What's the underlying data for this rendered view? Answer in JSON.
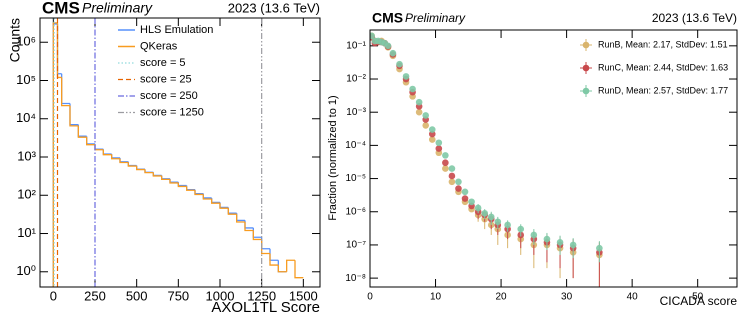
{
  "chart_data": [
    {
      "type": "histogram",
      "experiment": "CMS",
      "status": "Preliminary",
      "energy": "2023 (13.6 TeV)",
      "x_label": "AXOL1TL Score",
      "y_label": "Counts",
      "log_y": true,
      "legend": "upper right",
      "bins": [
        0,
        25,
        50,
        100,
        150,
        200,
        250,
        300,
        350,
        400,
        450,
        500,
        550,
        600,
        650,
        700,
        750,
        800,
        850,
        900,
        950,
        1000,
        1050,
        1100,
        1150,
        1200,
        1250,
        1300,
        1350,
        1400,
        1450,
        1500
      ],
      "series": [
        {
          "name": "HLS Emulation",
          "color": "#5790fc",
          "values": [
            3000000,
            150000,
            25000,
            7000,
            3500,
            2200,
            1600,
            1200,
            950,
            750,
            600,
            480,
            400,
            330,
            270,
            220,
            180,
            140,
            110,
            85,
            65,
            48,
            34,
            22,
            14,
            8,
            4,
            2,
            1,
            null,
            null
          ]
        },
        {
          "name": "QKeras",
          "color": "#f89c20",
          "values": [
            3200000,
            120000,
            22000,
            6500,
            3300,
            2100,
            1550,
            1150,
            900,
            720,
            580,
            470,
            390,
            320,
            260,
            210,
            170,
            135,
            105,
            80,
            62,
            46,
            32,
            20,
            12,
            7,
            3,
            1.5,
            1,
            2,
            0.7
          ]
        }
      ],
      "vlines": [
        {
          "name": "score = 5",
          "value": 5,
          "color": "#92dadd",
          "style": "dotted"
        },
        {
          "name": "score = 25",
          "value": 25,
          "color": "#e76300",
          "style": "dashed"
        },
        {
          "name": "score = 250",
          "value": 250,
          "color": "#6a6adf",
          "style": "dashdot"
        },
        {
          "name": "score = 1250",
          "value": 1250,
          "color": "#9c9ca1",
          "style": "dashdotdot"
        }
      ],
      "xlim": [
        -80,
        1600
      ],
      "xticks": [
        0,
        250,
        500,
        750,
        1000,
        1250,
        1500
      ],
      "ylim": [
        0.4,
        4300000
      ],
      "yticks": [
        {
          "value": 1,
          "label": "10⁰"
        },
        {
          "value": 10,
          "label": "10¹"
        },
        {
          "value": 100,
          "label": "10²"
        },
        {
          "value": 1000,
          "label": "10³"
        },
        {
          "value": 10000,
          "label": "10⁴"
        },
        {
          "value": 100000,
          "label": "10⁵"
        },
        {
          "value": 1000000,
          "label": "10⁶"
        }
      ]
    },
    {
      "type": "scatter",
      "experiment": "CMS",
      "status": "Preliminary",
      "energy": "2023 (13.6 TeV)",
      "x_label": "CICADA score",
      "y_label": "Fraction (normalized to 1)",
      "log_y": true,
      "legend": "upper right",
      "x": [
        0.25,
        0.75,
        1.25,
        1.75,
        2.25,
        2.75,
        3.5,
        4.5,
        5.5,
        6.5,
        7.5,
        8.5,
        9.5,
        10.5,
        11.5,
        12.5,
        13.5,
        14.5,
        15.5,
        16.5,
        17.5,
        18.5,
        19.5,
        21,
        23,
        25,
        27,
        29,
        31,
        35
      ],
      "series": [
        {
          "name": "RunB, Mean: 2.17, StdDev: 1.51",
          "color": "#d9b46c",
          "values": [
            0.2,
            0.14,
            0.13,
            0.14,
            0.12,
            0.09,
            0.05,
            0.02,
            0.008,
            0.003,
            0.001,
            0.0004,
            0.00015,
            6e-05,
            2e-05,
            8e-06,
            4e-06,
            2e-06,
            1.2e-06,
            8e-07,
            6e-07,
            4e-07,
            3e-07,
            2e-07,
            1.5e-07,
            1e-07,
            1e-07,
            8e-08,
            6e-08,
            5e-08
          ],
          "errors": [
            null,
            null,
            null,
            null,
            null,
            null,
            null,
            null,
            null,
            null,
            null,
            null,
            null,
            null,
            null,
            null,
            null,
            null,
            null,
            3e-07,
            3e-07,
            2e-07,
            2e-07,
            1.2e-07,
            1e-07,
            8e-08,
            8e-08,
            7e-08,
            5e-08,
            5e-08
          ]
        },
        {
          "name": "RunC, Mean: 2.44, StdDev: 1.63",
          "color": "#c8484b",
          "values": [
            0.18,
            0.12,
            0.13,
            0.13,
            0.12,
            0.095,
            0.055,
            0.025,
            0.01,
            0.004,
            0.0015,
            0.0006,
            0.00022,
            8e-05,
            3e-05,
            1.2e-05,
            5e-06,
            2.5e-06,
            1.5e-06,
            1e-06,
            8e-07,
            6e-07,
            4e-07,
            3e-07,
            2e-07,
            1.5e-07,
            1.2e-07,
            1e-07,
            8e-08,
            6e-08
          ],
          "errors": [
            null,
            null,
            null,
            null,
            null,
            null,
            null,
            null,
            null,
            null,
            null,
            null,
            null,
            null,
            null,
            null,
            null,
            null,
            null,
            4e-07,
            3e-07,
            3e-07,
            2e-07,
            1.5e-07,
            1.2e-07,
            1e-07,
            9e-08,
            8e-08,
            7e-08,
            6e-08
          ]
        },
        {
          "name": "RunD, Mean: 2.57, StdDev: 1.77",
          "color": "#7fc9a6",
          "values": [
            0.2,
            0.14,
            0.14,
            0.13,
            0.12,
            0.1,
            0.06,
            0.028,
            0.012,
            0.005,
            0.002,
            0.0008,
            0.0003,
            0.00012,
            5e-05,
            2e-05,
            8e-06,
            4e-06,
            2e-06,
            1.3e-06,
            9e-07,
            7e-07,
            5e-07,
            4e-07,
            3e-07,
            2e-07,
            1.5e-07,
            1.2e-07,
            1e-07,
            8e-08
          ],
          "errors": [
            null,
            null,
            null,
            null,
            null,
            null,
            null,
            null,
            null,
            null,
            null,
            null,
            null,
            null,
            null,
            null,
            null,
            null,
            null,
            4e-07,
            3e-07,
            3e-07,
            2e-07,
            1.5e-07,
            1.2e-07,
            1e-07,
            8e-08,
            7e-08,
            6e-08,
            5e-08
          ]
        }
      ],
      "xlim": [
        0,
        56
      ],
      "xticks": [
        0,
        10,
        20,
        30,
        40,
        50
      ],
      "ylim": [
        5.4e-09,
        0.3
      ],
      "yticks": [
        {
          "value": 1e-08,
          "label": "10⁻⁸"
        },
        {
          "value": 1e-07,
          "label": "10⁻⁷"
        },
        {
          "value": 1e-06,
          "label": "10⁻⁶"
        },
        {
          "value": 1e-05,
          "label": "10⁻⁵"
        },
        {
          "value": 0.0001,
          "label": "10⁻⁴"
        },
        {
          "value": 0.001,
          "label": "10⁻³"
        },
        {
          "value": 0.01,
          "label": "10⁻²"
        },
        {
          "value": 0.1,
          "label": "10⁻¹"
        }
      ]
    }
  ]
}
